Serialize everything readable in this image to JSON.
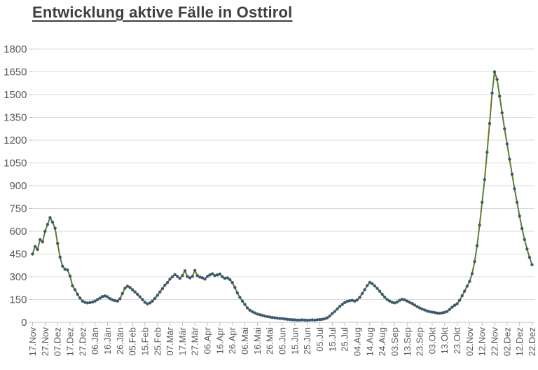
{
  "title": "Entwicklung aktive Fälle in Osttirol",
  "chart_data": {
    "type": "line",
    "title": "Entwicklung aktive Fälle in Osttirol",
    "legend": "none",
    "grid": "horizontal",
    "ylim": [
      0,
      1800
    ],
    "y_tick_step": 150,
    "y_tick_labels": [
      "0",
      "150",
      "300",
      "450",
      "600",
      "750",
      "900",
      "1050",
      "1200",
      "1350",
      "1500",
      "1650",
      "1800"
    ],
    "x_tick_labels": [
      "17.Nov",
      "27.Nov",
      "07.Dez",
      "17.Dez",
      "27.Dez",
      "06.Jän",
      "16.Jän",
      "26.Jän",
      "05.Feb",
      "15.Feb",
      "25.Feb",
      "07.Mär",
      "17.Mär",
      "27.Mär",
      "06.Apr",
      "16.Apr",
      "26.Apr",
      "06.Mai",
      "16.Mai",
      "26.Mai",
      "05.Jun",
      "15.Jun",
      "25.Jun",
      "05.Jul",
      "15.Jul",
      "25.Jul",
      "04.Aug",
      "14.Aug",
      "24.Aug",
      "03.Sep",
      "13.Sep",
      "23.Sep",
      "03.Okt",
      "13.Okt",
      "23.Okt",
      "02.Nov",
      "12.Nov",
      "22.Nov",
      "02.Dez",
      "12.Dez",
      "22.Dez"
    ],
    "x_tick_interval_days": 10,
    "total_days": 400,
    "point_step_days": 2,
    "series_name": "aktive Fälle",
    "values": [
      450,
      500,
      480,
      545,
      530,
      600,
      645,
      690,
      660,
      620,
      520,
      430,
      370,
      350,
      345,
      305,
      240,
      215,
      185,
      160,
      140,
      132,
      128,
      130,
      134,
      140,
      150,
      160,
      170,
      174,
      168,
      156,
      148,
      143,
      140,
      155,
      190,
      225,
      238,
      230,
      215,
      200,
      185,
      168,
      150,
      132,
      122,
      128,
      140,
      158,
      178,
      200,
      222,
      245,
      262,
      285,
      300,
      315,
      302,
      290,
      308,
      340,
      302,
      293,
      303,
      342,
      308,
      298,
      293,
      285,
      303,
      313,
      320,
      308,
      313,
      318,
      300,
      290,
      293,
      282,
      262,
      230,
      195,
      165,
      140,
      118,
      95,
      80,
      70,
      62,
      55,
      50,
      46,
      42,
      38,
      35,
      32,
      30,
      28,
      26,
      25,
      22,
      20,
      18,
      17,
      16,
      15,
      15,
      16,
      15,
      14,
      15,
      16,
      15,
      17,
      18,
      20,
      24,
      30,
      42,
      58,
      72,
      88,
      105,
      118,
      130,
      138,
      142,
      145,
      140,
      148,
      165,
      190,
      215,
      242,
      263,
      255,
      240,
      224,
      205,
      185,
      166,
      150,
      140,
      132,
      128,
      134,
      145,
      152,
      148,
      140,
      132,
      124,
      114,
      104,
      95,
      88,
      81,
      75,
      70,
      67,
      64,
      61,
      60,
      62,
      66,
      72,
      85,
      100,
      112,
      122,
      145,
      175,
      205,
      238,
      270,
      320,
      400,
      505,
      640,
      790,
      940,
      1120,
      1310,
      1510,
      1650,
      1600,
      1490,
      1380,
      1275,
      1175,
      1075,
      975,
      880,
      790,
      700,
      618,
      545,
      483,
      428,
      380
    ],
    "line_color": "#5f7d2d",
    "marker_color": "#3d5a6c",
    "grid_color": "#d9d9d9",
    "axis_color": "#bfbfbf",
    "tick_label_color": "#595959",
    "title_color": "#3f3f3f",
    "background_color": "#ffffff"
  }
}
